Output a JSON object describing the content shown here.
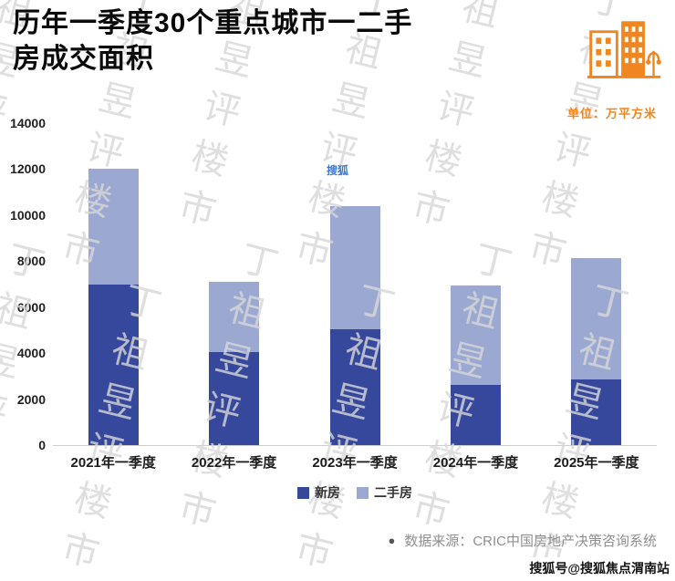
{
  "header": {
    "title_line1": "历年一季度30个重点城市一二手",
    "title_line2": "房成交面积"
  },
  "unit_label": "单位：万平方米",
  "chart_data": {
    "type": "bar",
    "stacked": true,
    "title": "历年一季度30个重点城市一二手房成交面积",
    "unit": "万平方米",
    "categories": [
      "2021年一季度",
      "2022年一季度",
      "2023年一季度",
      "2024年一季度",
      "2025年一季度"
    ],
    "series": [
      {
        "name": "新房",
        "color": "#36489c",
        "values": [
          7000,
          4050,
          5050,
          2600,
          2850
        ]
      },
      {
        "name": "二手房",
        "color": "#9aa8d2",
        "values": [
          5000,
          3050,
          5350,
          4350,
          5300
        ]
      }
    ],
    "totals": [
      12000,
      7100,
      10400,
      6950,
      8150
    ],
    "yticks": [
      0,
      2000,
      4000,
      6000,
      8000,
      10000,
      12000,
      14000
    ],
    "ylim": [
      0,
      14000
    ],
    "xlabel": "",
    "ylabel": "",
    "grid": false,
    "legend_position": "bottom"
  },
  "footer": {
    "source_bullet": "●",
    "source": "数据来源：CRIC中国房地产决策咨询系统",
    "sohu_badge": "搜狐号@搜狐焦点渭南站"
  },
  "watermark": {
    "text": "丁祖昱评楼市",
    "sohu": "搜狐"
  },
  "colors": {
    "accent_orange": "#f0861f",
    "new_house": "#36489c",
    "second_hand": "#9aa8d2"
  }
}
